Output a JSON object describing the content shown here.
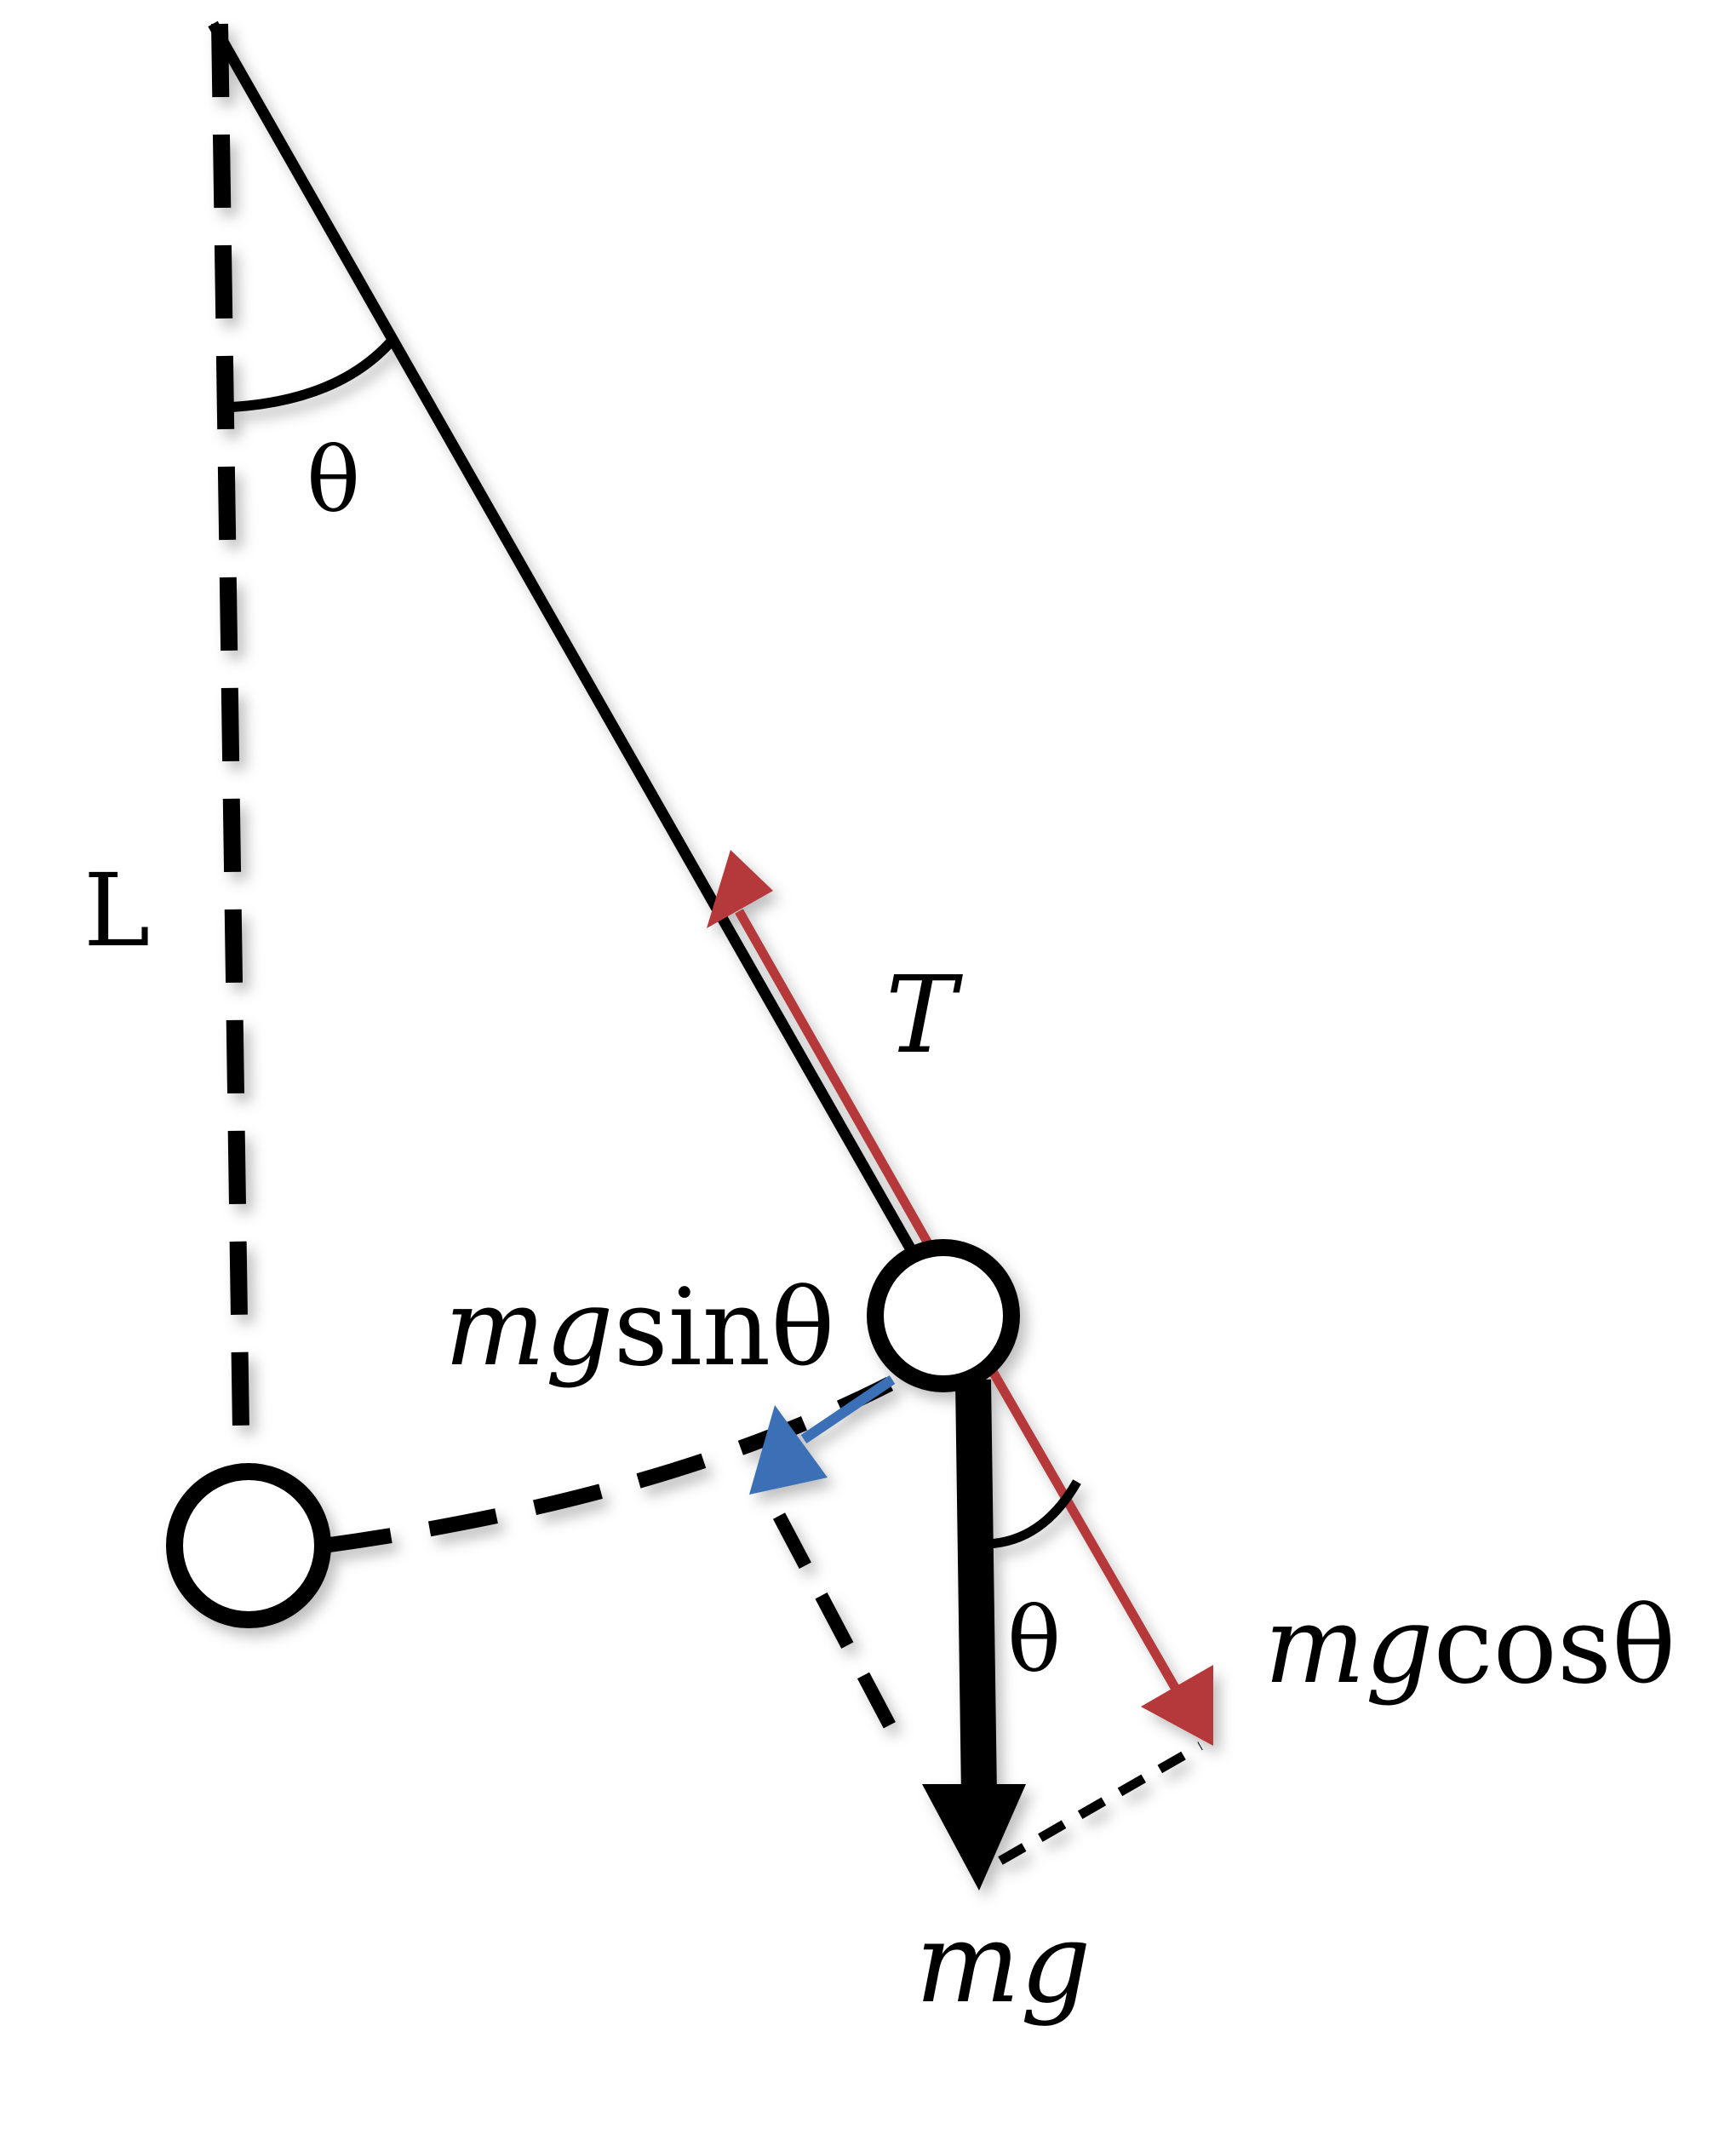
{
  "labels": {
    "theta_top": "θ",
    "length": "L",
    "tension": "T",
    "mg_sin_var": "mg",
    "mg_sin_fn": "sinθ",
    "theta_bottom": "θ",
    "mg_cos_var": "mg",
    "mg_cos_fn": "cosθ",
    "weight": "mg"
  },
  "colors": {
    "line": "#000000",
    "tension_arrow": "#B5383A",
    "sin_arrow": "#3B6FB6",
    "bob_fill": "#ffffff"
  }
}
